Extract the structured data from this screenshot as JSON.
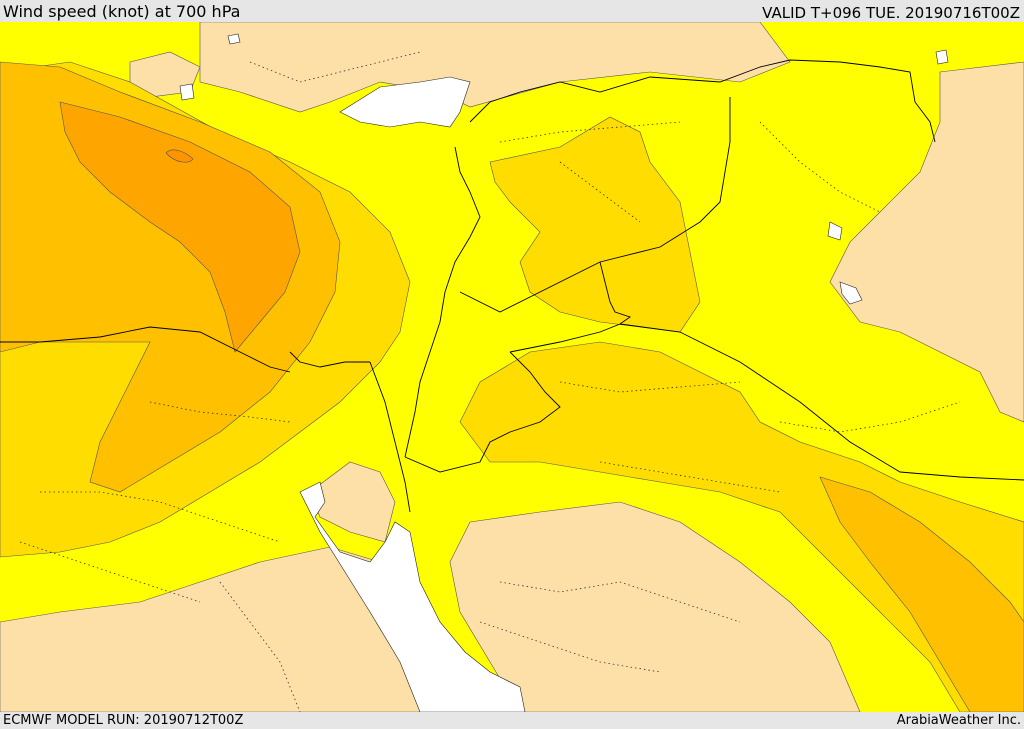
{
  "header": {
    "title": "Wind speed (knot) at 700 hPa",
    "valid": "VALID T+096 TUE. 20190716T00Z"
  },
  "footer": {
    "model_run": "ECMWF MODEL RUN: 20190712T00Z",
    "brand": "ArabiaWeather Inc."
  },
  "colors": {
    "land_low": "#fde0a8",
    "band_yellow": "#ffff00",
    "band_gold": "#ffdd00",
    "band_amber": "#ffc000",
    "band_orange": "#ffa500",
    "band_dark_orange": "#ff9400",
    "water": "#ffffff",
    "borders": "#000000"
  }
}
